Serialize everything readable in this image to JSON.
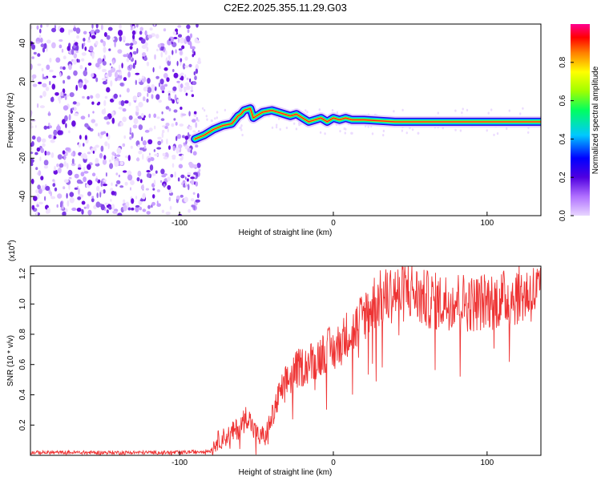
{
  "chart_data": [
    {
      "type": "heatmap",
      "title": "C2E2.2025.355.11.29.G03",
      "xlabel": "Height of straight line (km)",
      "ylabel": "Frequency (Hz)",
      "xlim": [
        -197,
        135
      ],
      "ylim": [
        -50,
        50
      ],
      "xticks": [
        -100,
        0,
        100
      ],
      "yticks": [
        -40,
        -20,
        0,
        20,
        40
      ],
      "colorbar": {
        "label": "Normalized spectral amplitude",
        "range": [
          0,
          1
        ],
        "ticks": [
          "0.0",
          "0.2",
          "0.4",
          "0.6",
          "0.8"
        ],
        "colors": [
          "#e0c8ff",
          "#7a00e6",
          "#0000ff",
          "#00c8ff",
          "#00ff80",
          "#a0ff00",
          "#ffff00",
          "#ff8000",
          "#ff0000",
          "#ff0080"
        ]
      },
      "noise_region_km": [
        -197,
        -90
      ],
      "ridge": {
        "x": [
          -90,
          -84,
          -78,
          -72,
          -66,
          -62,
          -60,
          -58,
          -54,
          -52,
          -50,
          -46,
          -40,
          -36,
          -32,
          -28,
          -24,
          -20,
          -16,
          -12,
          -8,
          -4,
          0,
          4,
          8,
          12,
          20,
          40,
          60,
          80,
          100,
          120,
          135
        ],
        "y": [
          -10,
          -8,
          -5,
          -3,
          -2,
          2,
          3,
          5,
          6,
          1,
          2,
          4,
          5,
          4,
          3,
          2,
          3,
          1,
          -1,
          0,
          1,
          -1,
          1,
          0,
          1,
          0,
          0,
          -1,
          -1,
          -1,
          -1,
          -1,
          -1
        ]
      }
    },
    {
      "type": "line",
      "xlabel": "Height of straight line (km)",
      "ylabel": "SNR (10 * v/v)",
      "scale_label": "(x10",
      "scale_exponent": "4",
      "xlim": [
        -197,
        135
      ],
      "ylim": [
        0,
        1.25
      ],
      "xticks": [
        -100,
        0,
        100
      ],
      "yticks": [
        "0.2",
        "0.4",
        "0.6",
        "0.8",
        "1.0",
        "1.2"
      ],
      "series": [
        {
          "name": "SNR",
          "color": "#ee3333",
          "x": [
            -197,
            -150,
            -100,
            -80,
            -76,
            -72,
            -68,
            -64,
            -60,
            -56,
            -52,
            -48,
            -44,
            -40,
            -36,
            -32,
            -28,
            -24,
            -20,
            -16,
            -12,
            -8,
            -4,
            0,
            4,
            8,
            10,
            12,
            16,
            20,
            24,
            28,
            32,
            36,
            40,
            44,
            48,
            52,
            56,
            60,
            70,
            80,
            90,
            100,
            110,
            120,
            135
          ],
          "y": [
            0.02,
            0.02,
            0.02,
            0.03,
            0.1,
            0.12,
            0.14,
            0.17,
            0.2,
            0.28,
            0.18,
            0.12,
            0.16,
            0.25,
            0.38,
            0.48,
            0.52,
            0.58,
            0.6,
            0.62,
            0.65,
            0.68,
            0.72,
            0.7,
            0.75,
            0.8,
            0.85,
            0.82,
            0.88,
            0.95,
            1.0,
            1.05,
            1.05,
            1.08,
            1.1,
            1.08,
            1.12,
            1.1,
            1.06,
            1.05,
            1.03,
            1.05,
            1.02,
            1.04,
            1.05,
            1.08,
            1.1
          ]
        }
      ]
    }
  ]
}
